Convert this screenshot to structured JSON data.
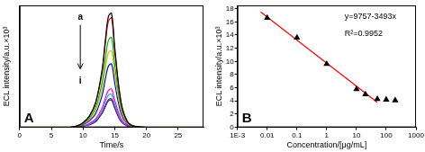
{
  "chart_data": [
    {
      "type": "line",
      "x_label": "Time/s",
      "y_label": "ECL intensity/a.u.×10³",
      "annotations": [
        "A",
        "a",
        "i"
      ],
      "x": [
        0,
        5,
        8,
        9,
        10,
        11,
        12,
        13,
        13.5,
        14,
        14.5,
        15,
        16,
        17,
        18,
        20,
        25,
        29
      ],
      "series": [
        {
          "color": "#000000",
          "values": [
            0,
            0,
            0,
            0.2,
            0.7,
            1.7,
            3.8,
            8.7,
            13,
            16.8,
            17.3,
            12.1,
            3.8,
            0.9,
            0.2,
            0,
            0,
            0
          ]
        },
        {
          "color": "#ff0000",
          "values": [
            0,
            0,
            0,
            0.2,
            0.7,
            1.7,
            3.7,
            8.3,
            12.5,
            16.1,
            16.6,
            11.6,
            3.7,
            0.8,
            0.2,
            0,
            0,
            0
          ]
        },
        {
          "color": "#00c000",
          "values": [
            0,
            0,
            0,
            0.1,
            0.5,
            1.4,
            3,
            6.8,
            10.2,
            13.2,
            13.6,
            9.5,
            3,
            0.7,
            0.1,
            0,
            0,
            0
          ]
        },
        {
          "color": "#c8c800",
          "values": [
            0,
            0,
            0,
            0.1,
            0.5,
            1.2,
            2.6,
            5.8,
            8.7,
            11.3,
            11.6,
            8.1,
            2.6,
            0.6,
            0.1,
            0,
            0,
            0
          ]
        },
        {
          "color": "#0000ff",
          "values": [
            0,
            0,
            0,
            0.1,
            0.4,
            1,
            2.1,
            4.8,
            7.2,
            9.3,
            9.6,
            6.7,
            2.1,
            0.5,
            0.1,
            0,
            0,
            0
          ]
        },
        {
          "color": "#ff00ff",
          "values": [
            0,
            0,
            0,
            0.1,
            0.2,
            0.6,
            1.3,
            2.9,
            4.4,
            5.6,
            5.8,
            4.1,
            1.3,
            0.3,
            0.1,
            0,
            0,
            0
          ]
        },
        {
          "color": "#00bfbf",
          "values": [
            0,
            0,
            0,
            0.1,
            0.2,
            0.5,
            1.1,
            2.5,
            3.8,
            4.9,
            5,
            3.5,
            1.1,
            0.3,
            0.1,
            0,
            0,
            0
          ]
        },
        {
          "color": "#800080",
          "values": [
            0,
            0,
            0,
            0,
            0.2,
            0.4,
            0.9,
            2.2,
            3.2,
            4.2,
            4.3,
            3,
            0.9,
            0.2,
            0,
            0,
            0,
            0
          ]
        },
        {
          "color": "#404080",
          "values": [
            0,
            0,
            0,
            0,
            0.2,
            0.4,
            0.9,
            2.1,
            3.1,
            4,
            4.1,
            2.9,
            0.9,
            0.2,
            0,
            0,
            0,
            0
          ]
        }
      ],
      "xlim": [
        0,
        29
      ],
      "xticks": [
        0,
        5,
        10,
        15,
        20,
        25
      ],
      "ylim": [
        0,
        18.5
      ],
      "grid": false,
      "tick_labels": "x"
    },
    {
      "type": "scatter",
      "x_label": "Concentration/[μg/mL]",
      "y_label": "ECL intensity/a.u.×10³",
      "annotations": [
        "B",
        "y=9757-3493x",
        "R²=0.9952"
      ],
      "series": [
        {
          "type": "scatter",
          "marker": "triangle",
          "color": "#000000",
          "x": [
            0.01,
            0.1,
            1,
            10,
            20,
            50,
            100,
            200
          ],
          "values": [
            16.6,
            13.6,
            9.6,
            5.8,
            5.0,
            4.3,
            4.2,
            4.1
          ]
        },
        {
          "type": "line",
          "line_style": "solid",
          "color": "#ff0000",
          "x": [
            0.006,
            50
          ],
          "values": [
            17.5,
            3.8
          ]
        }
      ],
      "xlim": [
        0.001,
        1000
      ],
      "xticks": [
        {
          "value": 0.001,
          "label": "1E-3"
        },
        0.01,
        0.1,
        1,
        10,
        100,
        1000
      ],
      "ylim": [
        0,
        18.5
      ],
      "yticks": [
        0,
        2,
        4,
        6,
        8,
        10,
        12,
        14,
        16,
        18
      ],
      "log": "x",
      "grid": false
    }
  ]
}
